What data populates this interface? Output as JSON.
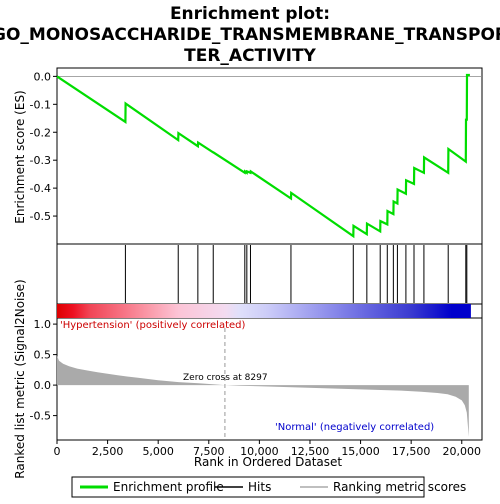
{
  "title_line1": "Enrichment plot:",
  "title_line2": "GO_MONOSACCHARIDE_TRANSMEMBRANE_TRANSPOR",
  "title_line3": "TER_ACTIVITY",
  "colors": {
    "es_line": "#00dd00",
    "hit": "#000000",
    "metric_fill": "#aaaaaa",
    "positive_label": "#cc0000",
    "negative_label": "#0000cc",
    "zero_line": "#999999"
  },
  "chart_data": [
    {
      "type": "line",
      "name": "enrichment-profile",
      "ylabel": "Enrichment score (ES)",
      "x_range": [
        0,
        21000
      ],
      "ylim": [
        -0.6,
        0.03
      ],
      "yticks": [
        "0.0",
        "-0.1",
        "-0.2",
        "-0.3",
        "-0.4",
        "-0.5"
      ],
      "ytick_values": [
        0.0,
        -0.1,
        -0.2,
        -0.3,
        -0.4,
        -0.5
      ],
      "grid": false,
      "x": [
        0,
        3380,
        3390,
        5990,
        6000,
        6960,
        6970,
        7720,
        7730,
        9280,
        9290,
        9380,
        9390,
        9560,
        9570,
        11560,
        11570,
        14640,
        14650,
        15310,
        15320,
        15970,
        15980,
        16320,
        16330,
        16620,
        16630,
        16820,
        16830,
        17240,
        17250,
        17640,
        17650,
        18130,
        18140,
        19330,
        19340,
        20200,
        20210,
        20250,
        20260,
        20400
      ],
      "y": [
        0.0,
        -0.163,
        -0.097,
        -0.228,
        -0.203,
        -0.25,
        -0.237,
        -0.272,
        -0.272,
        -0.345,
        -0.34,
        -0.345,
        -0.34,
        -0.345,
        -0.34,
        -0.437,
        -0.417,
        -0.572,
        -0.535,
        -0.565,
        -0.527,
        -0.555,
        -0.518,
        -0.53,
        -0.482,
        -0.493,
        -0.448,
        -0.455,
        -0.405,
        -0.42,
        -0.372,
        -0.385,
        -0.328,
        -0.345,
        -0.29,
        -0.345,
        -0.26,
        -0.305,
        -0.155,
        -0.155,
        0.005,
        0.005
      ]
    },
    {
      "type": "scatter",
      "name": "hits",
      "x": [
        3380,
        5990,
        6960,
        7720,
        9280,
        9380,
        9560,
        11560,
        14640,
        15310,
        15970,
        16320,
        16620,
        16820,
        17240,
        17640,
        18130,
        19330,
        20200,
        20250
      ]
    },
    {
      "type": "area",
      "name": "ranking-metric-scores",
      "xlabel": "Rank in Ordered Dataset",
      "ylabel": "Ranked list metric (Signal2Noise)",
      "x_range": [
        0,
        21000
      ],
      "ylim": [
        -0.9,
        1.1
      ],
      "xticks": [
        "0",
        "2,500",
        "5,000",
        "7,500",
        "10,000",
        "12,500",
        "15,000",
        "17,500",
        "20,000"
      ],
      "xtick_values": [
        0,
        2500,
        5000,
        7500,
        10000,
        12500,
        15000,
        17500,
        20000
      ],
      "yticks": [
        "1.0",
        "0.5",
        "0.0",
        "-0.5"
      ],
      "ytick_values": [
        1.0,
        0.5,
        0.0,
        -0.5
      ],
      "x": [
        0,
        100,
        300,
        600,
        1000,
        1500,
        2000,
        3000,
        4000,
        5000,
        6000,
        7000,
        8297,
        9000,
        10000,
        11000,
        12000,
        13000,
        14000,
        15000,
        16000,
        17000,
        18000,
        18800,
        19300,
        19700,
        20000,
        20150,
        20250,
        20350
      ],
      "y": [
        0.48,
        0.4,
        0.35,
        0.31,
        0.27,
        0.24,
        0.21,
        0.16,
        0.12,
        0.08,
        0.05,
        0.03,
        0.0,
        -0.01,
        -0.02,
        -0.03,
        -0.04,
        -0.05,
        -0.06,
        -0.07,
        -0.08,
        -0.09,
        -0.11,
        -0.13,
        -0.15,
        -0.19,
        -0.25,
        -0.33,
        -0.45,
        -0.85
      ],
      "annotations": {
        "positive": "'Hypertension' (positively correlated)",
        "negative": "'Normal' (negatively correlated)",
        "zero_cross": "Zero cross at 8297"
      },
      "zero_cross_x": 8297
    }
  ],
  "heatbar": {
    "stops": [
      {
        "x": 0,
        "color": "#dd0000"
      },
      {
        "x": 800,
        "color": "#ee1122"
      },
      {
        "x": 1600,
        "color": "#f04455"
      },
      {
        "x": 3400,
        "color": "#f77788"
      },
      {
        "x": 4500,
        "color": "#fa99a8"
      },
      {
        "x": 6000,
        "color": "#fcc4d6"
      },
      {
        "x": 8297,
        "color": "#f3dbf0"
      },
      {
        "x": 9000,
        "color": "#e0e0fa"
      },
      {
        "x": 10400,
        "color": "#ccccf8"
      },
      {
        "x": 12900,
        "color": "#9999ee"
      },
      {
        "x": 15300,
        "color": "#6666e0"
      },
      {
        "x": 17500,
        "color": "#3a3ad0"
      },
      {
        "x": 19500,
        "color": "#0000cc"
      },
      {
        "x": 20450,
        "color": "#0000cc"
      }
    ]
  },
  "legend": {
    "items": [
      {
        "label": "Enrichment profile",
        "color": "#00dd00",
        "kind": "line"
      },
      {
        "label": "Hits",
        "color": "#000000",
        "kind": "line"
      },
      {
        "label": "Ranking metric scores",
        "color": "#aaaaaa",
        "kind": "line"
      }
    ]
  }
}
